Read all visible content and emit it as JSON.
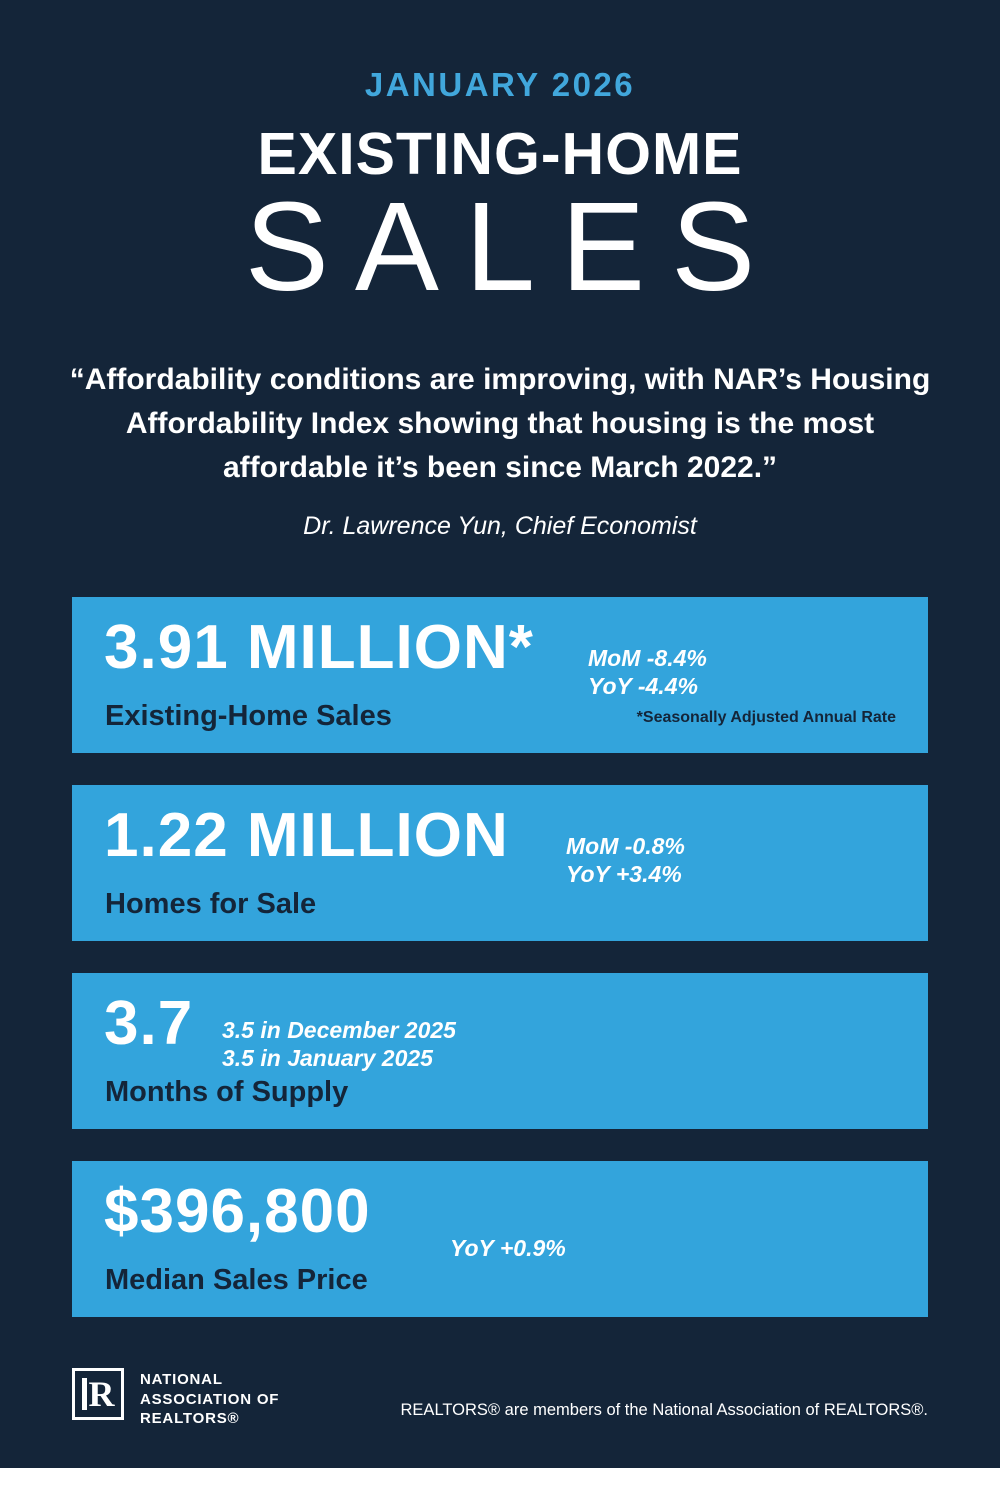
{
  "header": {
    "date": "JANUARY 2026",
    "title_line1": "EXISTING-HOME",
    "title_line2": "SALES"
  },
  "quote": {
    "text": "“Affordability conditions are improving, with NAR’s Housing Affordability Index showing that housing is the most affordable it’s been since March 2022.”",
    "attribution": "Dr. Lawrence Yun, Chief Economist"
  },
  "cards": [
    {
      "value": "3.91 MILLION*",
      "label": "Existing-Home Sales",
      "stat_line1": "MoM -8.4%",
      "stat_line2": "YoY -4.4%",
      "footnote": "*Seasonally Adjusted Annual Rate"
    },
    {
      "value": "1.22 MILLION",
      "label": "Homes for Sale",
      "stat_line1": "MoM -0.8%",
      "stat_line2": "YoY +3.4%"
    },
    {
      "value": "3.7",
      "label": "Months of Supply",
      "stat_line1": "3.5 in December 2025",
      "stat_line2": "3.5 in January 2025"
    },
    {
      "value": "$396,800",
      "label": "Median Sales Price",
      "stat_line1": "YoY +0.9%"
    }
  ],
  "footer": {
    "logo_letter": "R",
    "org_line1": "NATIONAL",
    "org_line2": "ASSOCIATION OF",
    "org_line3": "REALTORS®",
    "disclaimer": "REALTORS® are members of the National Association of REALTORS®."
  },
  "colors": {
    "background": "#142539",
    "accent_blue": "#41A7DC",
    "card_blue": "#33A4DC",
    "navy_text": "#142539",
    "white": "#FFFFFF"
  }
}
